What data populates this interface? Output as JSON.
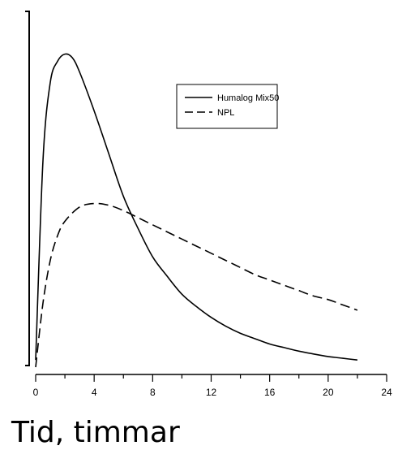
{
  "chart_data": {
    "type": "line",
    "title": "",
    "xlabel": "Tid, timmar",
    "ylabel": "",
    "xlim": [
      0,
      24
    ],
    "ylim": [
      0,
      1.0
    ],
    "x_ticks": [
      0,
      2,
      4,
      6,
      8,
      10,
      12,
      14,
      16,
      18,
      20,
      22,
      24
    ],
    "x_tick_labels": [
      "0",
      "4",
      "8",
      "12",
      "16",
      "20",
      "24"
    ],
    "x_tick_label_values": [
      0,
      4,
      8,
      12,
      16,
      20,
      24
    ],
    "y_tick_labels": [],
    "grid": false,
    "legend_position": "top-right",
    "series": [
      {
        "name": "Humalog Mix50",
        "style": "solid",
        "color": "#000000",
        "x": [
          0,
          0.5,
          1,
          1.5,
          2,
          2.5,
          3,
          4,
          5,
          6,
          7,
          8,
          9,
          10,
          11,
          12,
          13,
          14,
          15,
          16,
          17,
          18,
          19,
          20,
          21,
          22
        ],
        "y": [
          0.02,
          0.58,
          0.8,
          0.86,
          0.88,
          0.87,
          0.83,
          0.72,
          0.6,
          0.48,
          0.39,
          0.31,
          0.255,
          0.205,
          0.17,
          0.14,
          0.115,
          0.095,
          0.08,
          0.065,
          0.055,
          0.045,
          0.037,
          0.03,
          0.025,
          0.02
        ]
      },
      {
        "name": "NPL",
        "style": "dashed",
        "color": "#000000",
        "x": [
          0,
          0.5,
          1,
          1.5,
          2,
          3,
          4,
          5,
          6,
          7,
          8,
          9,
          10,
          11,
          12,
          13,
          14,
          15,
          16,
          17,
          18,
          19,
          20,
          21,
          22
        ],
        "y": [
          0.0,
          0.18,
          0.3,
          0.37,
          0.41,
          0.45,
          0.46,
          0.455,
          0.44,
          0.42,
          0.4,
          0.38,
          0.36,
          0.34,
          0.32,
          0.3,
          0.28,
          0.26,
          0.245,
          0.23,
          0.215,
          0.2,
          0.19,
          0.175,
          0.16
        ]
      }
    ]
  }
}
